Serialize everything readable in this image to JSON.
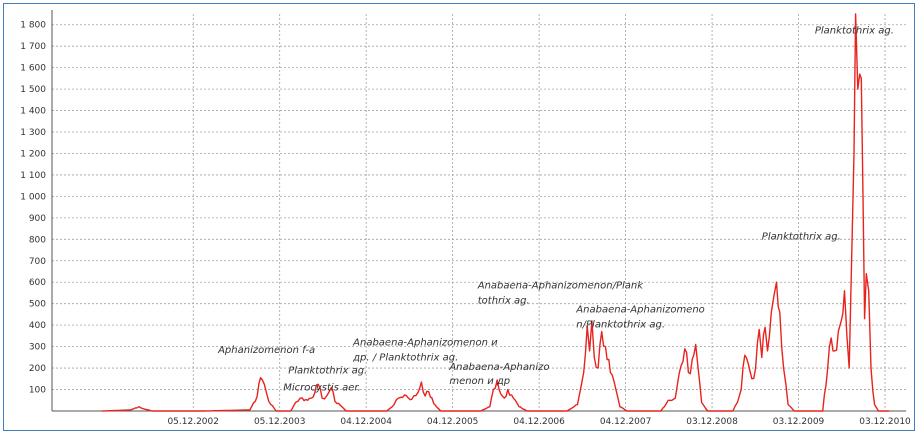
{
  "chart_data": {
    "type": "line",
    "title": "",
    "xlabel": "",
    "ylabel": "",
    "ylim": [
      0,
      1850
    ],
    "y_ticks": [
      "100",
      "200",
      "300",
      "400",
      "500",
      "600",
      "700",
      "800",
      "900",
      "1 000",
      "1 100",
      "1 200",
      "1 300",
      "1 400",
      "1 500",
      "1 600",
      "1 700",
      "1 800"
    ],
    "x_ticks": [
      "05.12.2002",
      "05.12.2003",
      "04.12.2004",
      "04.12.2005",
      "04.12.2006",
      "04.12.2007",
      "03.12.2008",
      "03.12.2009",
      "03.12.2010"
    ],
    "grid": true,
    "colors": {
      "line": "#e8231e",
      "grid": "#a0a0a0",
      "frame": "#3d7fc1",
      "axis": "#555555"
    },
    "annotations": [
      {
        "text": "Aphanizomenon  f-a",
        "x": "2003-03-20",
        "y": 270
      },
      {
        "text": "Planktothrix  ag.",
        "x": "2004-01-10",
        "y": 175
      },
      {
        "text": "Microcystis  aer.",
        "x": "2003-12-20",
        "y": 95
      },
      {
        "text": "Anabaena-Aphanizomenon  и",
        "x": "2004-10-10",
        "y": 305
      },
      {
        "text": "др. / Planktothrix ag.",
        "x": "2004-10-10",
        "y": 235
      },
      {
        "text": "Anabaena-Aphanizo",
        "x": "2005-11-20",
        "y": 190
      },
      {
        "text": "menon  и др",
        "x": "2005-11-20",
        "y": 125
      },
      {
        "text": "Anabaena-Aphanizomenon/Plank",
        "x": "2006-03-20",
        "y": 570
      },
      {
        "text": "tothrix ag.",
        "x": "2006-03-20",
        "y": 500
      },
      {
        "text": "Anabaena-Aphanizomeno",
        "x": "2007-05-10",
        "y": 460
      },
      {
        "text": "n/Planktothrix  ag.",
        "x": "2007-05-10",
        "y": 390
      },
      {
        "text": "Planktothrix ag.",
        "x": "2009-07-01",
        "y": 800
      },
      {
        "text": "Planktothrix ag.",
        "x": "2010-02-10",
        "y": 1760
      }
    ],
    "series": [
      {
        "values": [
          [
            "2001-11-15",
            0
          ],
          [
            "2002-03-15",
            5
          ],
          [
            "2002-04-20",
            20
          ],
          [
            "2002-05-10",
            10
          ],
          [
            "2002-06-15",
            0
          ],
          [
            "2003-01-15",
            0
          ],
          [
            "2003-08-01",
            5
          ],
          [
            "2003-09-01",
            70
          ],
          [
            "2003-09-15",
            155
          ],
          [
            "2003-10-01",
            125
          ],
          [
            "2003-10-20",
            45
          ],
          [
            "2003-11-20",
            0
          ],
          [
            "2004-01-20",
            0
          ],
          [
            "2004-02-10",
            40
          ],
          [
            "2004-03-01",
            60
          ],
          [
            "2004-04-01",
            50
          ],
          [
            "2004-05-01",
            85
          ],
          [
            "2004-05-15",
            125
          ],
          [
            "2004-06-01",
            60
          ],
          [
            "2004-06-20",
            70
          ],
          [
            "2004-07-10",
            110
          ],
          [
            "2004-07-25",
            45
          ],
          [
            "2004-08-10",
            35
          ],
          [
            "2004-09-10",
            0
          ],
          [
            "2005-03-01",
            0
          ],
          [
            "2005-04-01",
            30
          ],
          [
            "2005-04-20",
            60
          ],
          [
            "2005-05-15",
            75
          ],
          [
            "2005-06-15",
            55
          ],
          [
            "2005-07-10",
            85
          ],
          [
            "2005-07-25",
            135
          ],
          [
            "2005-08-10",
            70
          ],
          [
            "2005-08-25",
            90
          ],
          [
            "2005-09-15",
            35
          ],
          [
            "2005-10-15",
            0
          ],
          [
            "2006-04-01",
            0
          ],
          [
            "2006-05-10",
            20
          ],
          [
            "2006-05-25",
            100
          ],
          [
            "2006-06-10",
            145
          ],
          [
            "2006-06-25",
            80
          ],
          [
            "2006-07-10",
            60
          ],
          [
            "2006-07-25",
            100
          ],
          [
            "2006-08-10",
            75
          ],
          [
            "2006-09-10",
            20
          ],
          [
            "2006-10-15",
            0
          ],
          [
            "2007-04-01",
            0
          ],
          [
            "2007-05-15",
            30
          ],
          [
            "2007-06-10",
            180
          ],
          [
            "2007-06-25",
            395
          ],
          [
            "2007-07-05",
            280
          ],
          [
            "2007-07-15",
            420
          ],
          [
            "2007-07-25",
            250
          ],
          [
            "2007-08-10",
            200
          ],
          [
            "2007-08-25",
            370
          ],
          [
            "2007-09-10",
            300
          ],
          [
            "2007-10-01",
            180
          ],
          [
            "2007-11-10",
            20
          ],
          [
            "2007-12-10",
            0
          ],
          [
            "2008-05-01",
            0
          ],
          [
            "2008-06-01",
            50
          ],
          [
            "2008-07-01",
            60
          ],
          [
            "2008-07-25",
            210
          ],
          [
            "2008-08-10",
            290
          ],
          [
            "2008-08-25",
            180
          ],
          [
            "2008-09-10",
            240
          ],
          [
            "2008-09-25",
            310
          ],
          [
            "2008-10-05",
            200
          ],
          [
            "2008-10-20",
            40
          ],
          [
            "2008-11-15",
            0
          ],
          [
            "2009-03-01",
            0
          ],
          [
            "2009-03-20",
            40
          ],
          [
            "2009-04-05",
            100
          ],
          [
            "2009-04-20",
            260
          ],
          [
            "2009-05-05",
            220
          ],
          [
            "2009-05-20",
            150
          ],
          [
            "2009-06-05",
            200
          ],
          [
            "2009-06-20",
            380
          ],
          [
            "2009-07-01",
            250
          ],
          [
            "2009-07-15",
            390
          ],
          [
            "2009-07-25",
            280
          ],
          [
            "2009-08-10",
            460
          ],
          [
            "2009-08-20",
            530
          ],
          [
            "2009-09-01",
            600
          ],
          [
            "2009-09-15",
            460
          ],
          [
            "2009-10-01",
            200
          ],
          [
            "2009-10-20",
            30
          ],
          [
            "2009-11-15",
            0
          ],
          [
            "2010-03-15",
            0
          ],
          [
            "2010-04-05",
            200
          ],
          [
            "2010-04-20",
            340
          ],
          [
            "2010-05-05",
            280
          ],
          [
            "2010-05-20",
            370
          ],
          [
            "2010-06-01",
            420
          ],
          [
            "2010-06-15",
            560
          ],
          [
            "2010-06-25",
            350
          ],
          [
            "2010-07-05",
            200
          ],
          [
            "2010-07-15",
            700
          ],
          [
            "2010-07-25",
            1200
          ],
          [
            "2010-08-01",
            1850
          ],
          [
            "2010-08-10",
            1500
          ],
          [
            "2010-08-18",
            1570
          ],
          [
            "2010-08-25",
            1550
          ],
          [
            "2010-09-01",
            1000
          ],
          [
            "2010-09-08",
            430
          ],
          [
            "2010-09-15",
            640
          ],
          [
            "2010-09-25",
            560
          ],
          [
            "2010-10-05",
            200
          ],
          [
            "2010-10-20",
            30
          ],
          [
            "2010-11-05",
            0
          ],
          [
            "2010-12-20",
            0
          ]
        ]
      }
    ]
  }
}
